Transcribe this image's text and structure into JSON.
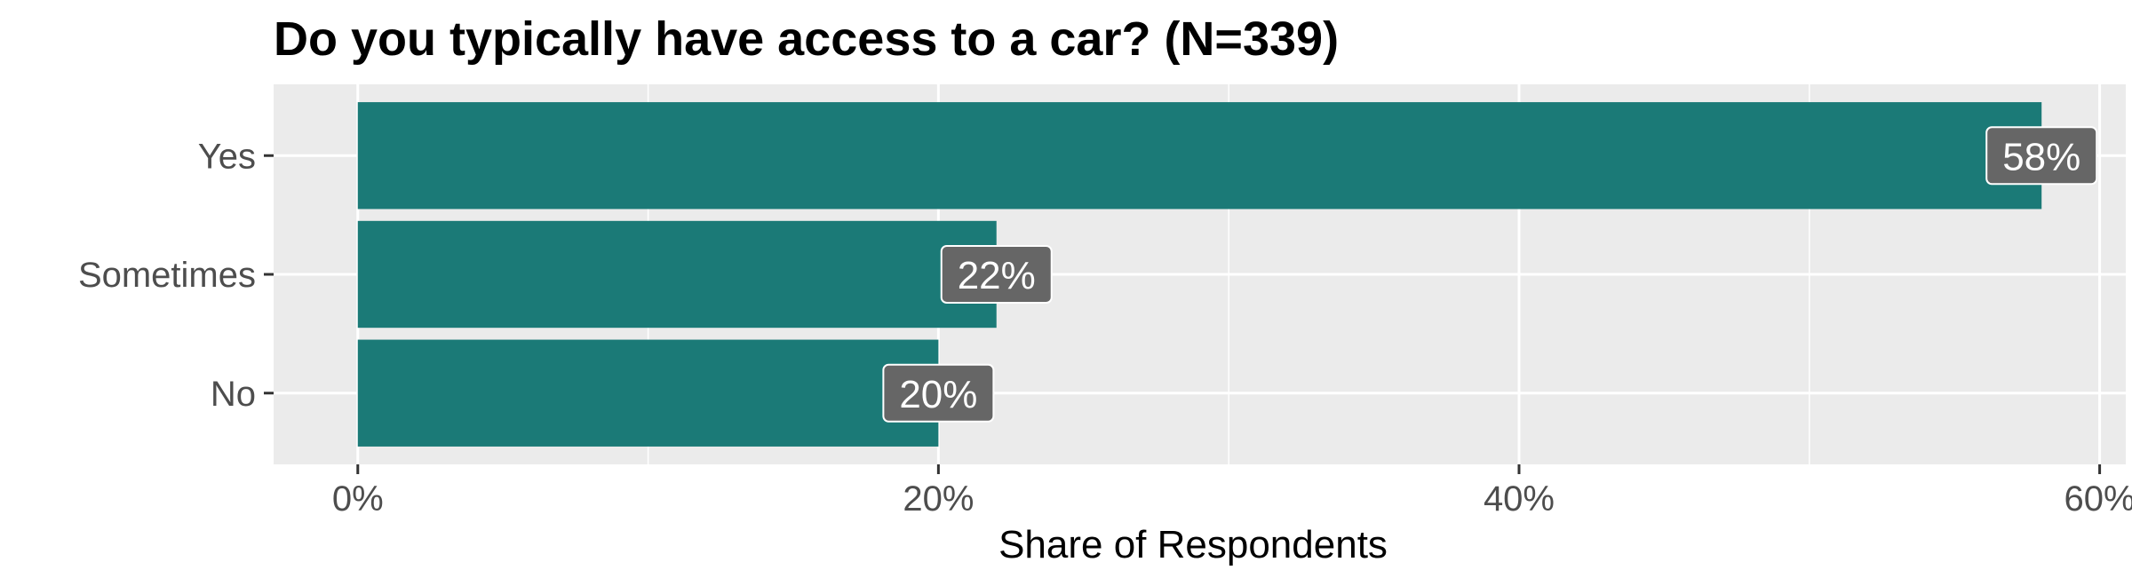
{
  "chart_data": {
    "type": "bar",
    "orientation": "horizontal",
    "title": "Do you typically have access to a car? (N=339)",
    "categories": [
      "Yes",
      "Sometimes",
      "No"
    ],
    "values": [
      58,
      22,
      20
    ],
    "data_labels": [
      "58%",
      "22%",
      "20%"
    ],
    "xlabel": "Share of Respondents",
    "ylabel": "",
    "xlim": [
      -2.9,
      60.9
    ],
    "x_ticks": [
      0,
      20,
      40,
      60
    ],
    "x_tick_labels": [
      "0%",
      "20%",
      "40%",
      "60%"
    ],
    "grid": true,
    "legend": "none",
    "colors": {
      "bar": "#1b7a77",
      "panel": "#ebebeb",
      "grid": "#ffffff",
      "label_bg": "#666666",
      "label_text": "#ffffff"
    }
  }
}
